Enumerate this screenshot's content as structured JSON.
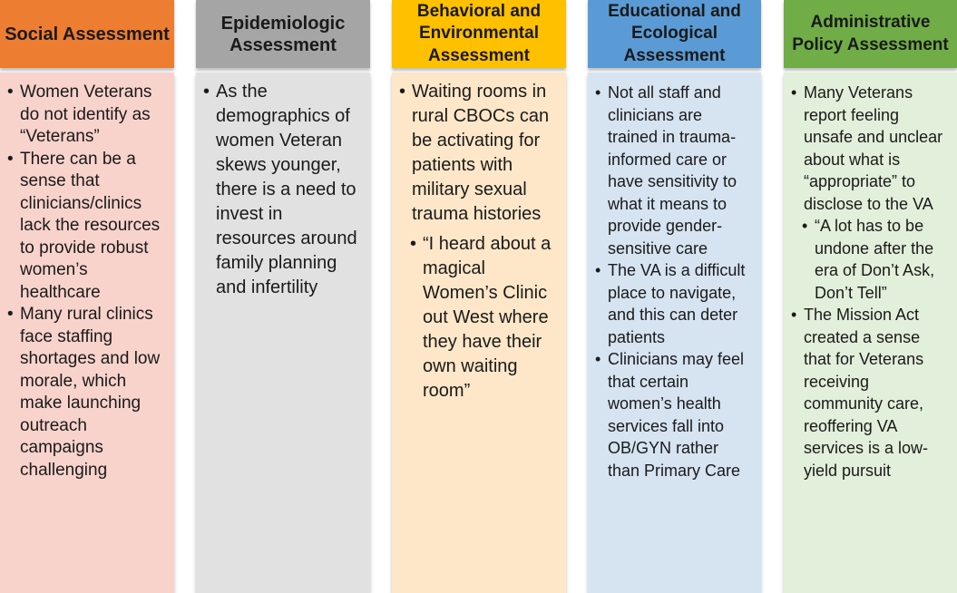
{
  "columns": [
    {
      "header": "Social Assessment",
      "items": [
        {
          "level": 1,
          "text": "Women Veterans do not identify as “Veterans”"
        },
        {
          "level": 1,
          "text": "There can be a sense that clinicians/clinics lack the resources to provide robust women’s healthcare"
        },
        {
          "level": 1,
          "text": "Many rural clinics face staffing shortages and low morale, which make launching outreach campaigns challenging"
        }
      ]
    },
    {
      "header": "Epidemiologic Assessment",
      "items": [
        {
          "level": 1,
          "text": "As the demographics of women Veteran skews younger, there is a need to invest in resources around family planning and infertility"
        }
      ]
    },
    {
      "header": "Behavioral and Environmental Assessment",
      "items": [
        {
          "level": 1,
          "text": "Waiting rooms in rural CBOCs can be activating for patients with military sexual trauma histories"
        },
        {
          "level": 2,
          "text": "“I heard about a magical Women’s Clinic out West where they have their own waiting room”"
        }
      ]
    },
    {
      "header": "Educational and Ecological Assessment",
      "items": [
        {
          "level": 1,
          "text": "Not all staff and clinicians are trained in trauma-informed care or have sensitivity to what it means to provide gender-sensitive care"
        },
        {
          "level": 1,
          "text": "The VA is a difficult place to navigate, and this can deter patients"
        },
        {
          "level": 1,
          "text": "Clinicians may feel that certain women’s health services fall into OB/GYN rather than Primary Care"
        }
      ]
    },
    {
      "header": "Administrative Policy Assessment",
      "items": [
        {
          "level": 1,
          "text": "Many Veterans report feeling unsafe and unclear about what is “appropriate” to disclose to the VA"
        },
        {
          "level": 2,
          "text": "“A lot has to be undone after the era of Don’t Ask, Don’t Tell”"
        },
        {
          "level": 1,
          "text": "The Mission Act created a sense that for Veterans receiving community care, reoffering VA services is a low-yield pursuit"
        }
      ]
    }
  ],
  "colors": {
    "social_header": "#ed7d31",
    "social_body": "#f8d3cc",
    "epi_header": "#a5a5a5",
    "epi_body": "#e1e1e1",
    "behav_header": "#ffc000",
    "behav_body": "#fde7c8",
    "edu_header": "#5b9bd5",
    "edu_body": "#d6e3f1",
    "admin_header": "#70ad47",
    "admin_body": "#e2efda"
  }
}
